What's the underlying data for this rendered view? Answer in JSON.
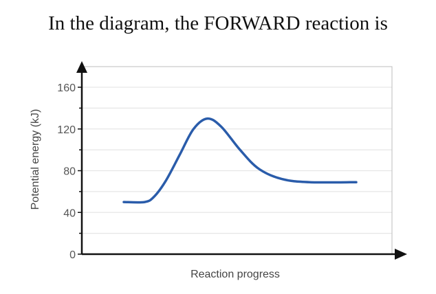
{
  "question": "In the diagram, the FORWARD reaction is",
  "colors": {
    "curve": "#2a5caa",
    "axis": "#111111",
    "grid": "#e6e6e6",
    "frame": "#bdbdbd"
  },
  "chart_data": {
    "type": "line",
    "title": "",
    "xlabel": "Reaction progress",
    "ylabel": "Potential energy (kJ)",
    "ylim": [
      0,
      160
    ],
    "yticks": [
      0,
      40,
      80,
      120,
      160
    ],
    "grid": true,
    "x_ticks_labeled": false,
    "series": [
      {
        "values": [
          {
            "x": 0.0,
            "y": 50
          },
          {
            "x": 0.09,
            "y": 50
          },
          {
            "x": 0.13,
            "y": 55
          },
          {
            "x": 0.18,
            "y": 70
          },
          {
            "x": 0.24,
            "y": 95
          },
          {
            "x": 0.3,
            "y": 120
          },
          {
            "x": 0.36,
            "y": 130
          },
          {
            "x": 0.42,
            "y": 122
          },
          {
            "x": 0.5,
            "y": 100
          },
          {
            "x": 0.58,
            "y": 82
          },
          {
            "x": 0.68,
            "y": 72
          },
          {
            "x": 0.8,
            "y": 69
          },
          {
            "x": 1.0,
            "y": 69
          }
        ]
      }
    ]
  }
}
